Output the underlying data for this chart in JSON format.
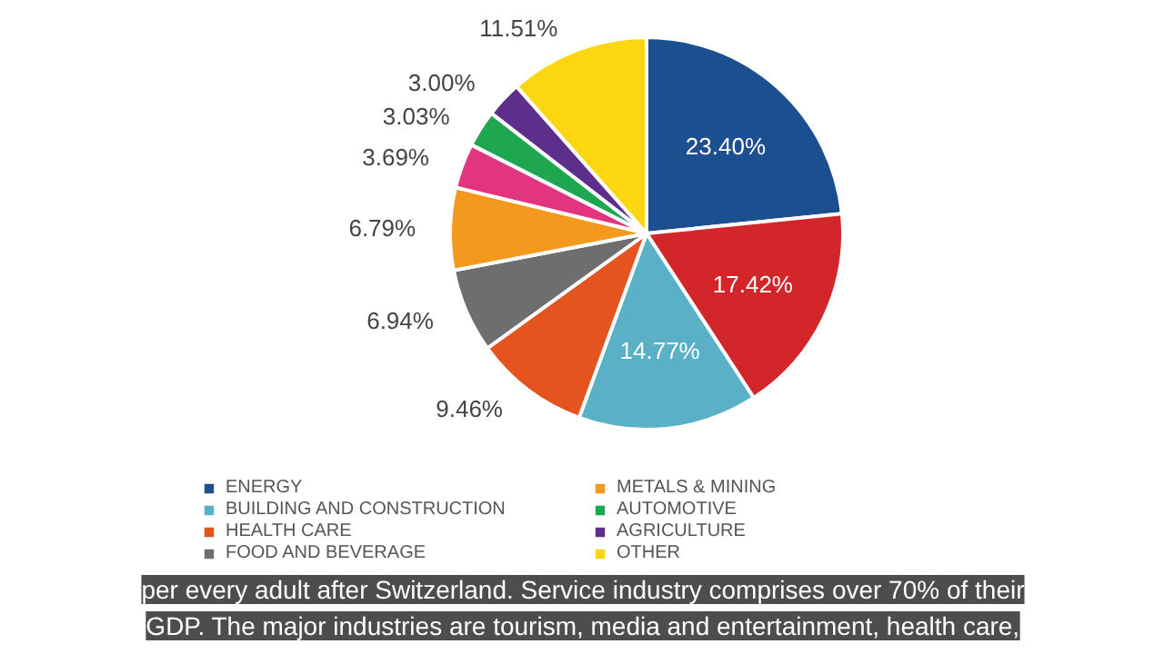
{
  "chart_data": {
    "type": "pie",
    "categories": [
      "ENERGY",
      null,
      "BUILDING AND CONSTRUCTION",
      "HEALTH CARE",
      "FOOD AND BEVERAGE",
      "METALS & MINING",
      null,
      "AUTOMOTIVE",
      "AGRICULTURE",
      "OTHER"
    ],
    "values": [
      23.4,
      17.42,
      14.77,
      9.46,
      6.94,
      6.79,
      3.69,
      3.03,
      3.0,
      11.51
    ],
    "colors": [
      "#1c4f8f",
      "#d2262a",
      "#5ab0c6",
      "#e5531f",
      "#6d6e70",
      "#f39a1e",
      "#e2347f",
      "#1ea650",
      "#5e2e8c",
      "#fcd70f"
    ],
    "value_labels": [
      "23.40%",
      "17.42%",
      "14.77%",
      "9.46%",
      "6.94%",
      "6.79%",
      "3.69%",
      "3.03%",
      "3.00%",
      "11.51%"
    ],
    "legend": "bottom",
    "annotations": [
      "per every adult after Switzerland. Service industry comprises over 70% of their",
      "GDP. The major industries are tourism, media and entertainment, health care,"
    ]
  }
}
